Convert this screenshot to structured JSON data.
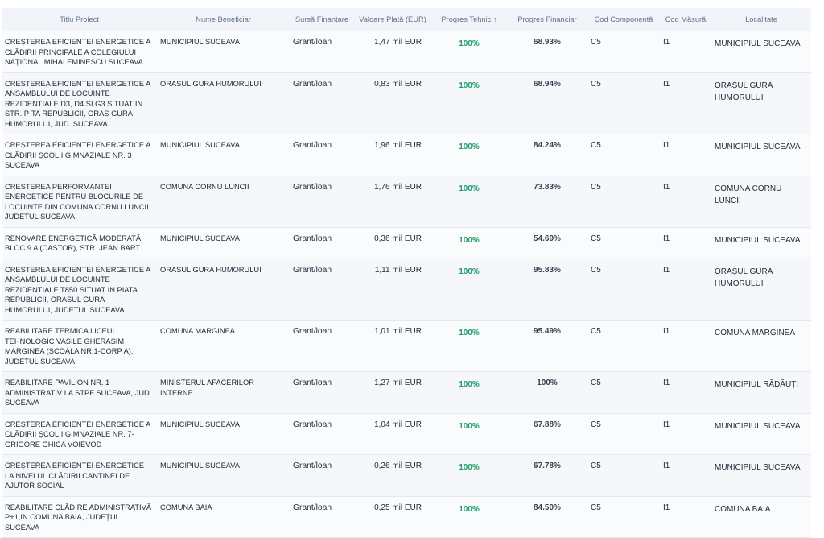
{
  "headers": [
    "Titlu Proiect",
    "Nume Beneficiar",
    "Sursă Finanțare",
    "Valoare Plată (EUR)",
    "Progres Tehnic ↑",
    "Progres Financiar",
    "Cod Componentă",
    "Cod Măsură",
    "Localitate"
  ],
  "rows": [
    {
      "title": "CREȘTEREA EFICIENȚEI ENERGETICE A CLĂDIRII PRINCIPALE A COLEGIULUI NAȚIONAL MIHAI EMINESCU SUCEAVA",
      "beneficiary": "MUNICIPIUL SUCEAVA",
      "source": "Grant/loan",
      "value": "1,47 mil EUR",
      "tech": "100%",
      "fin": "68.93%",
      "comp": "C5",
      "measure": "I1",
      "locality": "MUNICIPIUL SUCEAVA"
    },
    {
      "title": "CRESTEREA EFICIENTEI ENERGETICE A ANSAMBLULUI DE LOCUINTE REZIDENTIALE D3, D4 SI G3 SITUAT IN STR. P-TA REPUBLICII, ORAS GURA HUMORULUI, JUD. SUCEAVA",
      "beneficiary": "ORAȘUL GURA HUMORULUI",
      "source": "Grant/loan",
      "value": "0,83 mil EUR",
      "tech": "100%",
      "fin": "68.94%",
      "comp": "C5",
      "measure": "I1",
      "locality": "ORAȘUL GURA HUMORULUI"
    },
    {
      "title": "CREȘTEREA EFICIENȚEI ENERGETICE A CLĂDIRII ȘCOLII GIMNAZIALE NR. 3 SUCEAVA",
      "beneficiary": "MUNICIPIUL SUCEAVA",
      "source": "Grant/loan",
      "value": "1,96 mil EUR",
      "tech": "100%",
      "fin": "84.24%",
      "comp": "C5",
      "measure": "I1",
      "locality": "MUNICIPIUL SUCEAVA"
    },
    {
      "title": "CRESTEREA PERFORMANTEI ENERGETICE PENTRU BLOCURILE DE LOCUINTE DIN COMUNA CORNU LUNCII, JUDETUL SUCEAVA",
      "beneficiary": "COMUNA CORNU LUNCII",
      "source": "Grant/loan",
      "value": "1,76 mil EUR",
      "tech": "100%",
      "fin": "73.83%",
      "comp": "C5",
      "measure": "I1",
      "locality": "COMUNA CORNU LUNCII"
    },
    {
      "title": "RENOVARE ENERGETICĂ MODERATĂ BLOC 9 A (CASTOR), STR. JEAN BART",
      "beneficiary": "MUNICIPIUL SUCEAVA",
      "source": "Grant/loan",
      "value": "0,36 mil EUR",
      "tech": "100%",
      "fin": "54.69%",
      "comp": "C5",
      "measure": "I1",
      "locality": "MUNICIPIUL SUCEAVA"
    },
    {
      "title": "CRESTEREA EFICIENTEI ENERGETICE A ANSAMBLULUI DE LOCUINTE REZIDENTIALE T850 SITUAT IN PIATA REPUBLICII, ORASUL GURA HUMORULUI, JUDETUL SUCEAVA",
      "beneficiary": "ORAȘUL GURA HUMORULUI",
      "source": "Grant/loan",
      "value": "1,11 mil EUR",
      "tech": "100%",
      "fin": "95.83%",
      "comp": "C5",
      "measure": "I1",
      "locality": "ORAȘUL GURA HUMORULUI"
    },
    {
      "title": "REABILITARE TERMICA LICEUL TEHNOLOGIC VASILE GHERASIM MARGINEA (SCOALA NR.1-CORP A), JUDETUL SUCEAVA",
      "beneficiary": "COMUNA MARGINEA",
      "source": "Grant/loan",
      "value": "1,01 mil EUR",
      "tech": "100%",
      "fin": "95.49%",
      "comp": "C5",
      "measure": "I1",
      "locality": "COMUNA MARGINEA"
    },
    {
      "title": "REABILITARE PAVILION NR. 1 ADMINISTRATIV LA STPF SUCEAVA, JUD. SUCEAVA",
      "beneficiary": "MINISTERUL AFACERILOR INTERNE",
      "source": "Grant/loan",
      "value": "1,27 mil EUR",
      "tech": "100%",
      "fin": "100%",
      "comp": "C5",
      "measure": "I1",
      "locality": "MUNICIPIUL RĂDĂUȚI"
    },
    {
      "title": "CREȘTEREA EFICIENȚEI ENERGETICE A CLĂDIRII ȘCOLII GIMNAZIALE NR. 7-GRIGORE GHICA VOIEVOD",
      "beneficiary": "MUNICIPIUL SUCEAVA",
      "source": "Grant/loan",
      "value": "1,04 mil EUR",
      "tech": "100%",
      "fin": "67.88%",
      "comp": "C5",
      "measure": "I1",
      "locality": "MUNICIPIUL SUCEAVA"
    },
    {
      "title": "CREȘTEREA EFICIENȚEI ENERGETICE LA NIVELUL CLĂDIRII CANTINEI DE AJUTOR SOCIAL",
      "beneficiary": "MUNICIPIUL SUCEAVA",
      "source": "Grant/loan",
      "value": "0,26 mil EUR",
      "tech": "100%",
      "fin": "67.78%",
      "comp": "C5",
      "measure": "I1",
      "locality": "MUNICIPIUL SUCEAVA"
    },
    {
      "title": "REABILITARE CLĂDIRE ADMINISTRATIVĂ P+1,IN COMUNA BAIA, JUDEȚUL SUCEAVA",
      "beneficiary": "COMUNA BAIA",
      "source": "Grant/loan",
      "value": "0,25 mil EUR",
      "tech": "100%",
      "fin": "84.50%",
      "comp": "C5",
      "measure": "I1",
      "locality": "COMUNA BAIA"
    }
  ]
}
